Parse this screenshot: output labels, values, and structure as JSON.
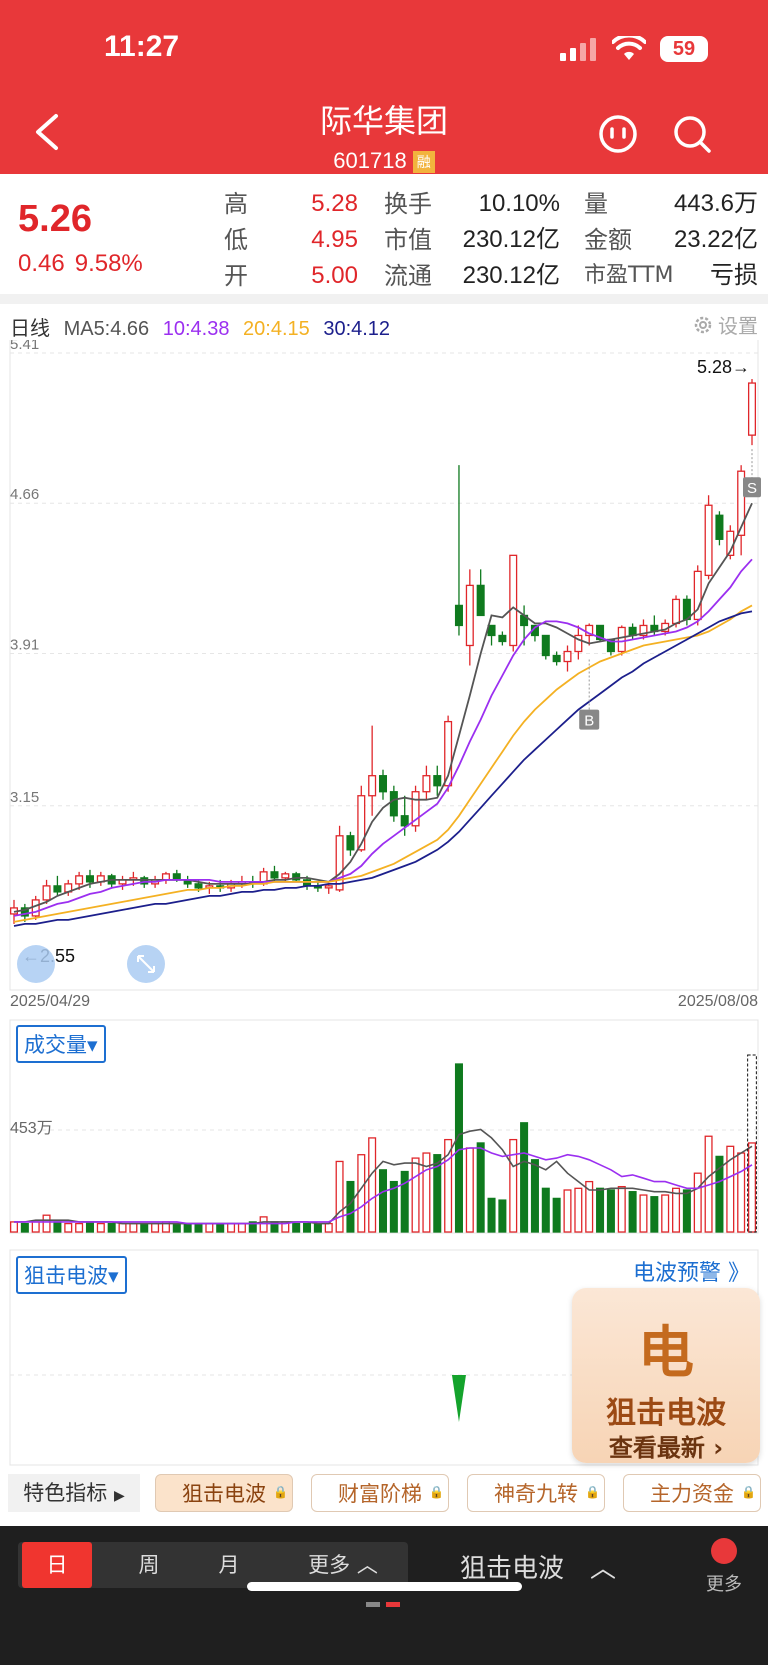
{
  "status": {
    "time": "11:27",
    "battery": "59"
  },
  "header": {
    "name": "际华集团",
    "code": "601718",
    "badge": "融"
  },
  "quote": {
    "price": "5.26",
    "change": "0.46",
    "change_pct": "9.58%",
    "cols": [
      [
        {
          "label": "高",
          "value": "5.28",
          "red": true
        },
        {
          "label": "低",
          "value": "4.95",
          "red": true
        },
        {
          "label": "开",
          "value": "5.00",
          "red": true
        }
      ],
      [
        {
          "label": "换手",
          "value": "10.10%"
        },
        {
          "label": "市值",
          "value": "230.12亿"
        },
        {
          "label": "流通",
          "value": "230.12亿"
        }
      ],
      [
        {
          "label": "量",
          "value": "443.6万"
        },
        {
          "label": "金额",
          "value": "23.22亿"
        },
        {
          "label": "市盈TTM",
          "value": "亏损"
        }
      ]
    ]
  },
  "ma": {
    "period": "日线",
    "ma5": "MA5:4.66",
    "ma10": "10:4.38",
    "ma20": "20:4.15",
    "ma30": "30:4.12",
    "settings": "设置",
    "colors": {
      "ma5": "#555555",
      "ma10": "#9b2ff0",
      "ma20": "#f4b123",
      "ma30": "#1c1f8c"
    }
  },
  "chart_data": {
    "type": "candlestick",
    "y_ticks": [
      "5.41",
      "4.66",
      "3.91",
      "3.15"
    ],
    "ylim": [
      2.4,
      5.41
    ],
    "high_label": "5.28→",
    "low_label": "←2.55",
    "markers": [
      "B",
      "S"
    ],
    "date_start": "2025/04/29",
    "date_end": "2025/08/08",
    "candles": [
      [
        2.61,
        2.68,
        2.56,
        2.64
      ],
      [
        2.64,
        2.66,
        2.57,
        2.6
      ],
      [
        2.6,
        2.7,
        2.58,
        2.68
      ],
      [
        2.68,
        2.78,
        2.66,
        2.75
      ],
      [
        2.75,
        2.8,
        2.7,
        2.72
      ],
      [
        2.72,
        2.78,
        2.7,
        2.76
      ],
      [
        2.76,
        2.82,
        2.73,
        2.8
      ],
      [
        2.8,
        2.83,
        2.74,
        2.77
      ],
      [
        2.77,
        2.82,
        2.75,
        2.8
      ],
      [
        2.8,
        2.81,
        2.74,
        2.76
      ],
      [
        2.76,
        2.8,
        2.73,
        2.78
      ],
      [
        2.78,
        2.82,
        2.75,
        2.79
      ],
      [
        2.79,
        2.8,
        2.74,
        2.76
      ],
      [
        2.76,
        2.8,
        2.74,
        2.78
      ],
      [
        2.78,
        2.82,
        2.76,
        2.81
      ],
      [
        2.81,
        2.83,
        2.77,
        2.78
      ],
      [
        2.78,
        2.8,
        2.74,
        2.76
      ],
      [
        2.76,
        2.78,
        2.72,
        2.74
      ],
      [
        2.74,
        2.77,
        2.71,
        2.75
      ],
      [
        2.75,
        2.78,
        2.72,
        2.74
      ],
      [
        2.74,
        2.78,
        2.72,
        2.76
      ],
      [
        2.76,
        2.8,
        2.74,
        2.77
      ],
      [
        2.77,
        2.8,
        2.74,
        2.76
      ],
      [
        2.76,
        2.84,
        2.75,
        2.82
      ],
      [
        2.82,
        2.85,
        2.77,
        2.79
      ],
      [
        2.79,
        2.82,
        2.77,
        2.81
      ],
      [
        2.81,
        2.82,
        2.77,
        2.78
      ],
      [
        2.78,
        2.8,
        2.73,
        2.75
      ],
      [
        2.75,
        2.77,
        2.72,
        2.74
      ],
      [
        2.74,
        2.76,
        2.71,
        2.75
      ],
      [
        2.73,
        3.05,
        2.72,
        3.0
      ],
      [
        3.0,
        3.02,
        2.9,
        2.93
      ],
      [
        2.93,
        3.25,
        2.92,
        3.2
      ],
      [
        3.2,
        3.55,
        3.1,
        3.3
      ],
      [
        3.3,
        3.33,
        3.18,
        3.22
      ],
      [
        3.22,
        3.25,
        3.07,
        3.1
      ],
      [
        3.1,
        3.2,
        3.0,
        3.05
      ],
      [
        3.05,
        3.25,
        3.02,
        3.22
      ],
      [
        3.22,
        3.35,
        3.18,
        3.3
      ],
      [
        3.3,
        3.35,
        3.2,
        3.25
      ],
      [
        3.25,
        3.6,
        3.22,
        3.57
      ],
      [
        4.15,
        4.85,
        4.0,
        4.05
      ],
      [
        3.95,
        4.33,
        3.85,
        4.25
      ],
      [
        4.25,
        4.33,
        4.1,
        4.1
      ],
      [
        4.05,
        4.02,
        3.95,
        4.0
      ],
      [
        4.0,
        4.02,
        3.95,
        3.97
      ],
      [
        3.95,
        4.4,
        3.92,
        4.4
      ],
      [
        4.1,
        4.15,
        3.95,
        4.05
      ],
      [
        4.05,
        4.05,
        3.97,
        4.0
      ],
      [
        4.0,
        3.98,
        3.88,
        3.9
      ],
      [
        3.9,
        3.92,
        3.85,
        3.87
      ],
      [
        3.87,
        3.95,
        3.82,
        3.92
      ],
      [
        3.92,
        4.05,
        3.88,
        4.0
      ],
      [
        4.0,
        4.06,
        3.95,
        4.05
      ],
      [
        4.05,
        4.05,
        3.97,
        3.98
      ],
      [
        3.98,
        3.98,
        3.9,
        3.92
      ],
      [
        3.92,
        4.05,
        3.9,
        4.04
      ],
      [
        4.04,
        4.06,
        3.98,
        4.0
      ],
      [
        4.0,
        4.08,
        3.98,
        4.05
      ],
      [
        4.05,
        4.1,
        4.0,
        4.02
      ],
      [
        4.02,
        4.08,
        4.0,
        4.06
      ],
      [
        4.06,
        4.2,
        4.04,
        4.18
      ],
      [
        4.18,
        4.2,
        4.05,
        4.08
      ],
      [
        4.08,
        4.35,
        4.05,
        4.32
      ],
      [
        4.3,
        4.7,
        4.28,
        4.65
      ],
      [
        4.6,
        4.62,
        4.45,
        4.48
      ],
      [
        4.4,
        4.55,
        4.38,
        4.52
      ],
      [
        4.5,
        4.85,
        4.4,
        4.82
      ],
      [
        5.0,
        5.28,
        4.95,
        5.26
      ]
    ],
    "ma_series": {
      "ma5": [
        2.62,
        2.63,
        2.65,
        2.67,
        2.7,
        2.72,
        2.74,
        2.76,
        2.77,
        2.78,
        2.78,
        2.78,
        2.78,
        2.78,
        2.78,
        2.78,
        2.78,
        2.77,
        2.76,
        2.76,
        2.76,
        2.76,
        2.76,
        2.77,
        2.78,
        2.78,
        2.79,
        2.79,
        2.78,
        2.77,
        2.81,
        2.87,
        2.96,
        3.07,
        3.14,
        3.18,
        3.19,
        3.18,
        3.18,
        3.19,
        3.3,
        3.5,
        3.7,
        3.91,
        4.1,
        4.09,
        4.14,
        4.1,
        4.06,
        4.06,
        4.04,
        4.01,
        3.98,
        3.96,
        3.97,
        3.98,
        3.99,
        4.0,
        4.01,
        4.02,
        4.03,
        4.06,
        4.08,
        4.13,
        4.26,
        4.34,
        4.42,
        4.54,
        4.66
      ],
      "ma10": [
        2.6,
        2.61,
        2.62,
        2.64,
        2.66,
        2.67,
        2.69,
        2.71,
        2.72,
        2.74,
        2.75,
        2.76,
        2.77,
        2.77,
        2.78,
        2.78,
        2.78,
        2.78,
        2.78,
        2.77,
        2.77,
        2.77,
        2.77,
        2.77,
        2.77,
        2.77,
        2.77,
        2.77,
        2.77,
        2.77,
        2.79,
        2.81,
        2.85,
        2.91,
        2.96,
        3.0,
        3.04,
        3.08,
        3.12,
        3.16,
        3.24,
        3.35,
        3.47,
        3.58,
        3.7,
        3.8,
        3.9,
        3.98,
        4.04,
        4.07,
        4.07,
        4.06,
        4.04,
        4.01,
        3.99,
        3.97,
        3.97,
        3.98,
        3.99,
        4.0,
        4.01,
        4.02,
        4.04,
        4.07,
        4.12,
        4.18,
        4.24,
        4.32,
        4.38
      ],
      "ma20": [
        2.57,
        2.58,
        2.59,
        2.6,
        2.61,
        2.62,
        2.63,
        2.64,
        2.65,
        2.66,
        2.67,
        2.68,
        2.69,
        2.7,
        2.71,
        2.72,
        2.73,
        2.73,
        2.74,
        2.74,
        2.75,
        2.75,
        2.76,
        2.76,
        2.77,
        2.77,
        2.77,
        2.77,
        2.77,
        2.77,
        2.78,
        2.79,
        2.8,
        2.82,
        2.84,
        2.86,
        2.89,
        2.92,
        2.95,
        2.98,
        3.03,
        3.1,
        3.18,
        3.26,
        3.34,
        3.42,
        3.5,
        3.57,
        3.63,
        3.68,
        3.73,
        3.77,
        3.81,
        3.84,
        3.87,
        3.89,
        3.91,
        3.93,
        3.95,
        3.96,
        3.97,
        3.98,
        3.99,
        4.0,
        4.02,
        4.05,
        4.08,
        4.12,
        4.15
      ],
      "ma30": [
        2.55,
        2.56,
        2.56,
        2.57,
        2.58,
        2.58,
        2.59,
        2.6,
        2.61,
        2.62,
        2.63,
        2.64,
        2.65,
        2.66,
        2.66,
        2.67,
        2.68,
        2.69,
        2.7,
        2.7,
        2.71,
        2.72,
        2.72,
        2.73,
        2.73,
        2.74,
        2.74,
        2.75,
        2.75,
        2.76,
        2.76,
        2.77,
        2.78,
        2.79,
        2.81,
        2.83,
        2.85,
        2.87,
        2.9,
        2.93,
        2.97,
        3.02,
        3.08,
        3.14,
        3.2,
        3.26,
        3.32,
        3.38,
        3.43,
        3.48,
        3.53,
        3.58,
        3.63,
        3.67,
        3.71,
        3.75,
        3.79,
        3.82,
        3.86,
        3.89,
        3.92,
        3.95,
        3.98,
        4.01,
        4.04,
        4.07,
        4.09,
        4.11,
        4.12
      ]
    }
  },
  "volume": {
    "selector": "成交量",
    "label": "453万",
    "bars": [
      0.06,
      0.05,
      0.06,
      0.1,
      0.06,
      0.05,
      0.05,
      0.06,
      0.05,
      0.05,
      0.05,
      0.05,
      0.05,
      0.05,
      0.06,
      0.05,
      0.05,
      0.05,
      0.05,
      0.05,
      0.05,
      0.05,
      0.06,
      0.09,
      0.06,
      0.06,
      0.05,
      0.05,
      0.05,
      0.05,
      0.42,
      0.3,
      0.46,
      0.56,
      0.37,
      0.3,
      0.36,
      0.44,
      0.47,
      0.46,
      0.55,
      1.0,
      0.5,
      0.53,
      0.2,
      0.19,
      0.55,
      0.65,
      0.43,
      0.26,
      0.2,
      0.25,
      0.26,
      0.3,
      0.26,
      0.25,
      0.27,
      0.24,
      0.22,
      0.21,
      0.22,
      0.26,
      0.25,
      0.35,
      0.57,
      0.45,
      0.51,
      0.47,
      0.53
    ],
    "ma_a": [
      0.06,
      0.06,
      0.07,
      0.07,
      0.07,
      0.07,
      0.06,
      0.06,
      0.06,
      0.06,
      0.05,
      0.05,
      0.05,
      0.05,
      0.05,
      0.05,
      0.05,
      0.05,
      0.05,
      0.05,
      0.05,
      0.05,
      0.05,
      0.06,
      0.06,
      0.06,
      0.06,
      0.06,
      0.05,
      0.05,
      0.12,
      0.17,
      0.26,
      0.35,
      0.42,
      0.4,
      0.41,
      0.41,
      0.39,
      0.41,
      0.46,
      0.58,
      0.6,
      0.61,
      0.56,
      0.49,
      0.39,
      0.42,
      0.4,
      0.37,
      0.42,
      0.35,
      0.3,
      0.25,
      0.25,
      0.26,
      0.26,
      0.26,
      0.25,
      0.24,
      0.24,
      0.23,
      0.23,
      0.26,
      0.33,
      0.38,
      0.43,
      0.47,
      0.51
    ],
    "ma_b": [
      0.06,
      0.06,
      0.06,
      0.06,
      0.06,
      0.06,
      0.06,
      0.06,
      0.06,
      0.06,
      0.06,
      0.06,
      0.06,
      0.06,
      0.06,
      0.06,
      0.05,
      0.05,
      0.05,
      0.05,
      0.05,
      0.05,
      0.05,
      0.05,
      0.05,
      0.05,
      0.06,
      0.06,
      0.06,
      0.06,
      0.09,
      0.11,
      0.15,
      0.2,
      0.24,
      0.26,
      0.29,
      0.33,
      0.37,
      0.39,
      0.43,
      0.49,
      0.5,
      0.5,
      0.47,
      0.45,
      0.46,
      0.47,
      0.45,
      0.43,
      0.44,
      0.46,
      0.45,
      0.43,
      0.4,
      0.37,
      0.33,
      0.34,
      0.32,
      0.3,
      0.3,
      0.28,
      0.26,
      0.26,
      0.28,
      0.3,
      0.33,
      0.36,
      0.4
    ],
    "colors": {
      "ma_a": "#555555",
      "ma_b": "#9b2ff0"
    }
  },
  "indicator": {
    "selector": "狙击电波",
    "alert": "电波预警 》",
    "promo_title": "狙击电波",
    "promo_sub": "查看最新 ›",
    "promo_icon": "电"
  },
  "tabs": {
    "feature": "特色指标",
    "items": [
      {
        "label": "狙击电波",
        "active": true
      },
      {
        "label": "财富阶梯"
      },
      {
        "label": "神奇九转"
      },
      {
        "label": "主力资金"
      }
    ]
  },
  "bottom": {
    "periods": [
      "日",
      "周",
      "月"
    ],
    "more_period": "更多",
    "current_indicator": "狙击电波",
    "more": "更多"
  }
}
